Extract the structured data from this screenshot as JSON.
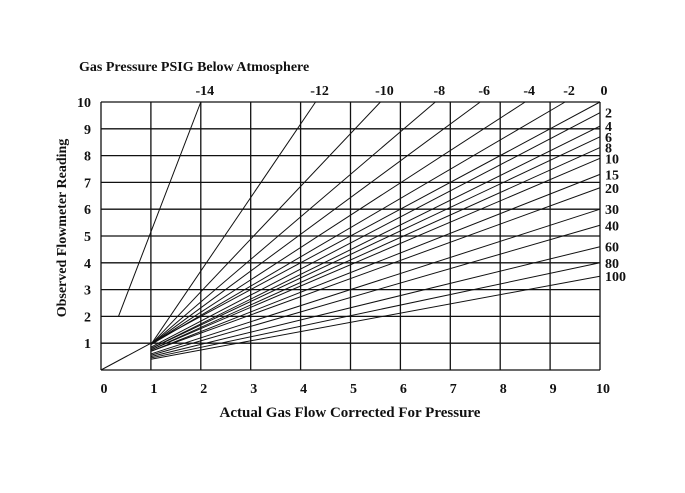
{
  "chart_data": {
    "type": "line",
    "title": "Gas Pressure PSIG Below Atmosphere",
    "xlabel": "Actual Gas Flow Corrected For Pressure",
    "ylabel": "Observed Flowmeter Reading",
    "xlim": [
      0,
      10
    ],
    "ylim": [
      0,
      10
    ],
    "grid": true,
    "x_ticks": [
      "0",
      "1",
      "2",
      "3",
      "4",
      "5",
      "6",
      "7",
      "8",
      "9",
      "10"
    ],
    "y_ticks": [
      "1",
      "2",
      "3",
      "4",
      "5",
      "6",
      "7",
      "8",
      "9",
      "10"
    ],
    "top_pressure_labels": [
      {
        "label": "-14",
        "x": 2.0
      },
      {
        "label": "-12",
        "x": 4.3
      },
      {
        "label": "-10",
        "x": 5.6
      },
      {
        "label": "-8",
        "x": 6.7
      },
      {
        "label": "-6",
        "x": 7.6
      },
      {
        "label": "-4",
        "x": 8.5
      },
      {
        "label": "-2",
        "x": 9.3
      },
      {
        "label": "0",
        "x": 10.0
      }
    ],
    "right_pressure_labels": [
      {
        "label": "2",
        "y": 9.6
      },
      {
        "label": "4",
        "y": 9.1
      },
      {
        "label": "6",
        "y": 8.7
      },
      {
        "label": "8",
        "y": 8.3
      },
      {
        "label": "10",
        "y": 7.9
      },
      {
        "label": "15",
        "y": 7.3
      },
      {
        "label": "20",
        "y": 6.8
      },
      {
        "label": "30",
        "y": 6.0
      },
      {
        "label": "40",
        "y": 5.4
      },
      {
        "label": "60",
        "y": 4.6
      },
      {
        "label": "80",
        "y": 4.0
      },
      {
        "label": "100",
        "y": 3.5
      }
    ],
    "series": [
      {
        "name": "-14",
        "x": [
          0.35,
          2.0
        ],
        "y": [
          2,
          10
        ]
      },
      {
        "name": "-12",
        "x": [
          1,
          4.3
        ],
        "y": [
          0.95,
          10
        ]
      },
      {
        "name": "-10",
        "x": [
          1,
          5.6
        ],
        "y": [
          0.95,
          10
        ]
      },
      {
        "name": "-8",
        "x": [
          1,
          6.7
        ],
        "y": [
          0.95,
          10
        ]
      },
      {
        "name": "-6",
        "x": [
          1,
          7.6
        ],
        "y": [
          0.95,
          10
        ]
      },
      {
        "name": "-4",
        "x": [
          1,
          8.5
        ],
        "y": [
          0.95,
          10
        ]
      },
      {
        "name": "-2",
        "x": [
          1,
          9.3
        ],
        "y": [
          0.95,
          10
        ]
      },
      {
        "name": "0",
        "x": [
          0,
          10
        ],
        "y": [
          0,
          10
        ]
      },
      {
        "name": "2",
        "x": [
          1,
          10
        ],
        "y": [
          0.85,
          9.6
        ]
      },
      {
        "name": "4",
        "x": [
          1,
          10
        ],
        "y": [
          0.8,
          9.1
        ]
      },
      {
        "name": "6",
        "x": [
          1,
          10
        ],
        "y": [
          0.8,
          8.7
        ]
      },
      {
        "name": "8",
        "x": [
          1,
          10
        ],
        "y": [
          0.75,
          8.3
        ]
      },
      {
        "name": "10",
        "x": [
          1,
          10
        ],
        "y": [
          0.75,
          7.9
        ]
      },
      {
        "name": "15",
        "x": [
          1,
          10
        ],
        "y": [
          0.7,
          7.3
        ]
      },
      {
        "name": "20",
        "x": [
          1,
          10
        ],
        "y": [
          0.7,
          6.8
        ]
      },
      {
        "name": "30",
        "x": [
          1,
          10
        ],
        "y": [
          0.6,
          6.0
        ]
      },
      {
        "name": "40",
        "x": [
          1,
          10
        ],
        "y": [
          0.55,
          5.4
        ]
      },
      {
        "name": "60",
        "x": [
          1,
          10
        ],
        "y": [
          0.5,
          4.6
        ]
      },
      {
        "name": "80",
        "x": [
          1,
          10
        ],
        "y": [
          0.45,
          4.0
        ]
      },
      {
        "name": "100",
        "x": [
          1,
          10
        ],
        "y": [
          0.4,
          3.5
        ]
      }
    ]
  }
}
